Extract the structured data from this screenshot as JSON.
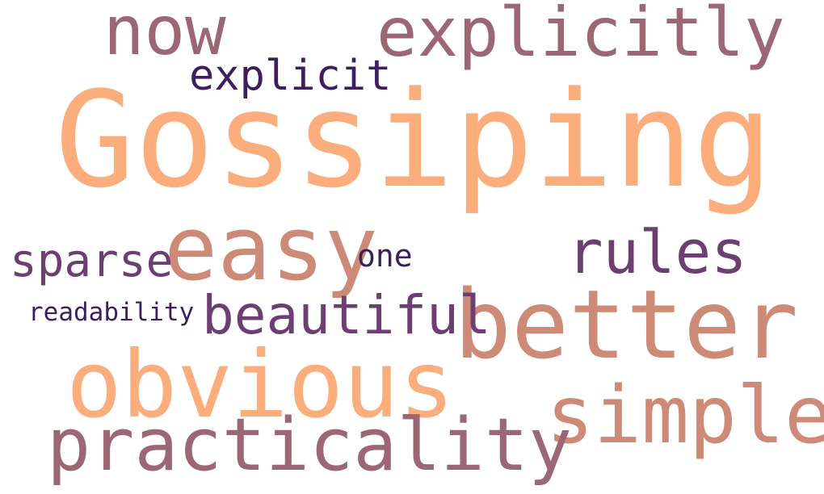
{
  "words": {
    "gossiping": "Gossiping",
    "now": "now",
    "explicitly": "explicitly",
    "explicit": "explicit",
    "easy": "easy",
    "rules": "rules",
    "sparse": "sparse",
    "one": "one",
    "better": "better",
    "readability": "readability",
    "beautiful": "beautiful",
    "obvious": "obvious",
    "simple": "simple",
    "practicality": "practicality"
  },
  "palette": {
    "peach": "#fbae7c",
    "tan": "#cd8a76",
    "mauve": "#9c6775",
    "plum": "#6d3e72",
    "indigo": "#3d1e5e"
  }
}
